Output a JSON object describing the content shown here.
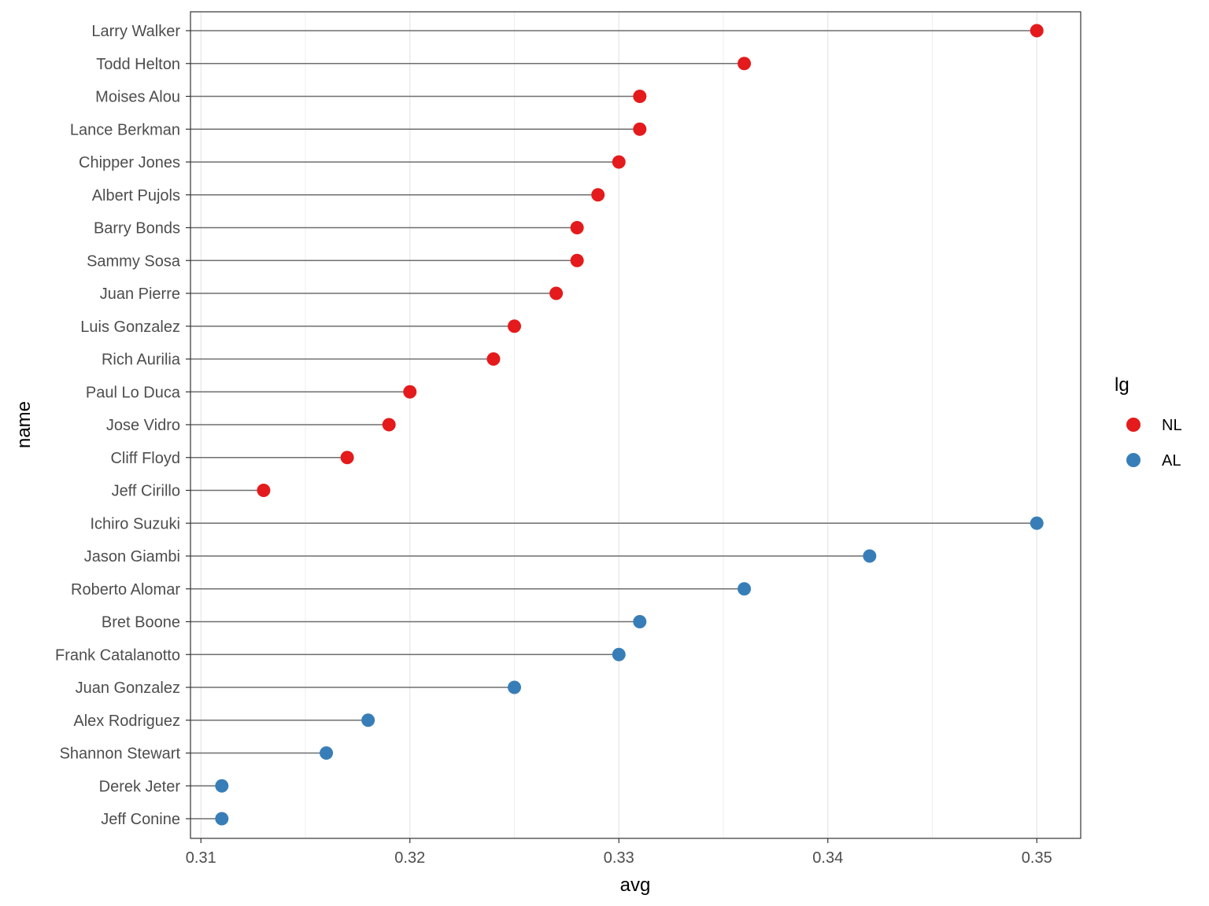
{
  "chart_data": {
    "type": "scatter",
    "subtype": "lollipop",
    "xlabel": "avg",
    "ylabel": "name",
    "xlim": [
      0.3095,
      0.3521
    ],
    "x_ticks": [
      0.31,
      0.32,
      0.33,
      0.34,
      0.35
    ],
    "x_tick_labels": [
      "0.31",
      "0.32",
      "0.33",
      "0.34",
      "0.35"
    ],
    "grid": true,
    "legend": {
      "title": "lg",
      "position": "right",
      "entries": [
        {
          "label": "NL",
          "color": "#e41a1c"
        },
        {
          "label": "AL",
          "color": "#377eb8"
        }
      ]
    },
    "points": [
      {
        "name": "Larry Walker",
        "avg": 0.35,
        "lg": "NL"
      },
      {
        "name": "Todd Helton",
        "avg": 0.336,
        "lg": "NL"
      },
      {
        "name": "Moises Alou",
        "avg": 0.331,
        "lg": "NL"
      },
      {
        "name": "Lance Berkman",
        "avg": 0.331,
        "lg": "NL"
      },
      {
        "name": "Chipper Jones",
        "avg": 0.33,
        "lg": "NL"
      },
      {
        "name": "Albert Pujols",
        "avg": 0.329,
        "lg": "NL"
      },
      {
        "name": "Barry Bonds",
        "avg": 0.328,
        "lg": "NL"
      },
      {
        "name": "Sammy Sosa",
        "avg": 0.328,
        "lg": "NL"
      },
      {
        "name": "Juan Pierre",
        "avg": 0.327,
        "lg": "NL"
      },
      {
        "name": "Luis Gonzalez",
        "avg": 0.325,
        "lg": "NL"
      },
      {
        "name": "Rich Aurilia",
        "avg": 0.324,
        "lg": "NL"
      },
      {
        "name": "Paul Lo Duca",
        "avg": 0.32,
        "lg": "NL"
      },
      {
        "name": "Jose Vidro",
        "avg": 0.319,
        "lg": "NL"
      },
      {
        "name": "Cliff Floyd",
        "avg": 0.317,
        "lg": "NL"
      },
      {
        "name": "Jeff Cirillo",
        "avg": 0.313,
        "lg": "NL"
      },
      {
        "name": "Ichiro Suzuki",
        "avg": 0.35,
        "lg": "AL"
      },
      {
        "name": "Jason Giambi",
        "avg": 0.342,
        "lg": "AL"
      },
      {
        "name": "Roberto Alomar",
        "avg": 0.336,
        "lg": "AL"
      },
      {
        "name": "Bret Boone",
        "avg": 0.331,
        "lg": "AL"
      },
      {
        "name": "Frank Catalanotto",
        "avg": 0.33,
        "lg": "AL"
      },
      {
        "name": "Juan Gonzalez",
        "avg": 0.325,
        "lg": "AL"
      },
      {
        "name": "Alex Rodriguez",
        "avg": 0.318,
        "lg": "AL"
      },
      {
        "name": "Shannon Stewart",
        "avg": 0.316,
        "lg": "AL"
      },
      {
        "name": "Derek Jeter",
        "avg": 0.311,
        "lg": "AL"
      },
      {
        "name": "Jeff Conine",
        "avg": 0.311,
        "lg": "AL"
      }
    ]
  }
}
